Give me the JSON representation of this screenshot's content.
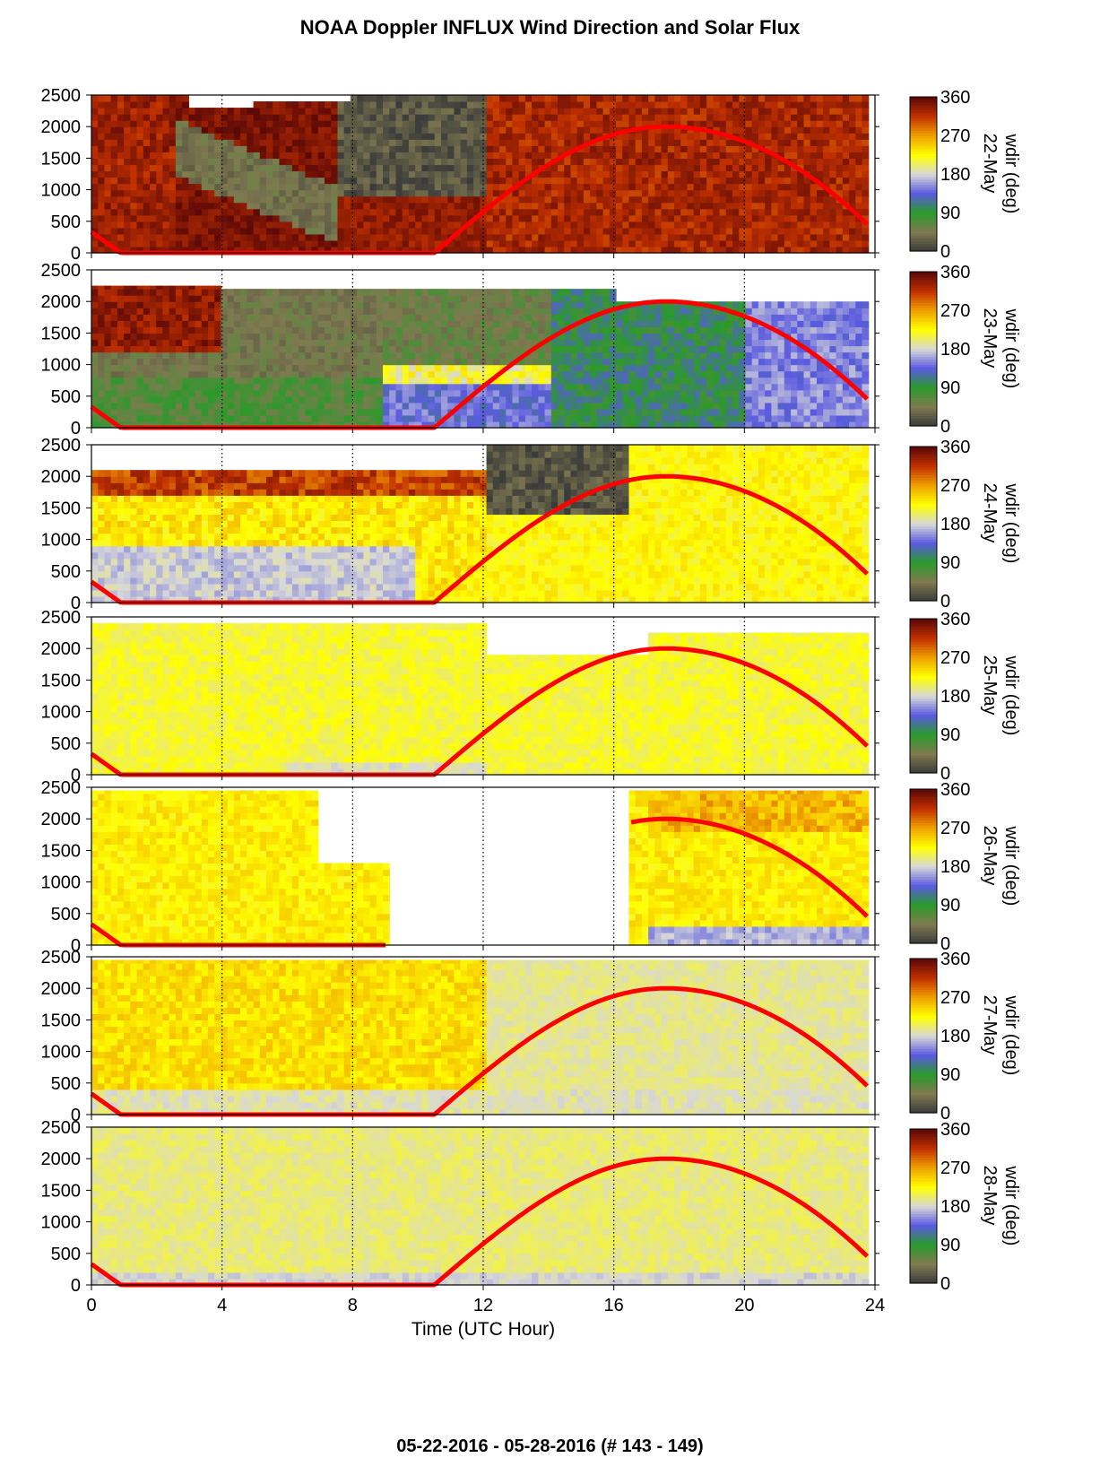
{
  "title": "NOAA Doppler INFLUX Wind Direction and Solar Flux",
  "footer": "05-22-2016 - 05-28-2016   (# 143 - 149)",
  "colors": {
    "solar_flux_line": "#ff0000",
    "colormap": [
      "#3a3a3a",
      "#807a50",
      "#2a9a2a",
      "#5a5ae0",
      "#d8d8d8",
      "#ffff00",
      "#f0a000",
      "#c03000",
      "#5a0808"
    ]
  },
  "chart_data": {
    "type": "heatmap",
    "title": "NOAA Doppler INFLUX Wind Direction and Solar Flux",
    "xlabel": "Time (UTC Hour)",
    "xlim": [
      0,
      24
    ],
    "x_ticks": [
      "0",
      "4",
      "8",
      "12",
      "16",
      "20",
      "24"
    ],
    "ylim": [
      0,
      2500
    ],
    "y_ticks": [
      "0",
      "500",
      "1000",
      "1500",
      "2000",
      "2500"
    ],
    "grid": "dotted vertical lines at 4, 8, 12, 16, 20",
    "colorbar": {
      "label": "wdir (deg)",
      "range": [
        0,
        360
      ],
      "ticks": [
        "0",
        "90",
        "180",
        "270",
        "360"
      ]
    },
    "solar_flux_curve": {
      "night_value": 0,
      "sunrise_hour": 10.5,
      "peak_hour": 17.6,
      "peak_value": 2000,
      "end_value": 460,
      "start_value": 330
    },
    "panels": [
      {
        "day_label": "22-May",
        "description": "mostly northerly/westerly winds (dark red to olive), 270-360 deg",
        "points": [
          [
            "0-2h",
            "330"
          ],
          [
            "2-7h",
            "40"
          ],
          [
            "8-12h",
            "320"
          ],
          [
            "12-24h",
            "330"
          ]
        ]
      },
      {
        "day_label": "23-May",
        "description": "olive/green with blue below 1000 m, shifting to green and lavender after 16h",
        "points": [
          [
            "0-4h",
            "330"
          ],
          [
            "4-10h",
            "60"
          ],
          [
            "10-14h",
            "150"
          ],
          [
            "14-24h",
            "120"
          ]
        ]
      },
      {
        "day_label": "24-May",
        "description": "yellow/orange with dark red top layer and lavender near surface",
        "points": [
          [
            "0-10h",
            "220"
          ],
          [
            "12-16h",
            "30"
          ],
          [
            "16-24h",
            "230"
          ]
        ]
      },
      {
        "day_label": "25-May",
        "description": "mostly yellow (approx. 200-230 deg) throughout",
        "points": [
          [
            "0-24h",
            "215"
          ]
        ]
      },
      {
        "day_label": "26-May",
        "description": "yellow/orange until ~9h, data gap 9-16.5h, orange/yellow after",
        "points": [
          [
            "0-9h",
            "230"
          ],
          [
            "9-16.5h",
            "no data"
          ],
          [
            "16.5-24h",
            "240"
          ]
        ]
      },
      {
        "day_label": "27-May",
        "description": "yellow/orange with light lavender surface layer",
        "points": [
          [
            "0-12h",
            "235"
          ],
          [
            "12-24h",
            "190"
          ]
        ]
      },
      {
        "day_label": "28-May",
        "description": "light grey/yellow, near 190-210 deg",
        "points": [
          [
            "0-24h",
            "200"
          ]
        ]
      }
    ]
  }
}
